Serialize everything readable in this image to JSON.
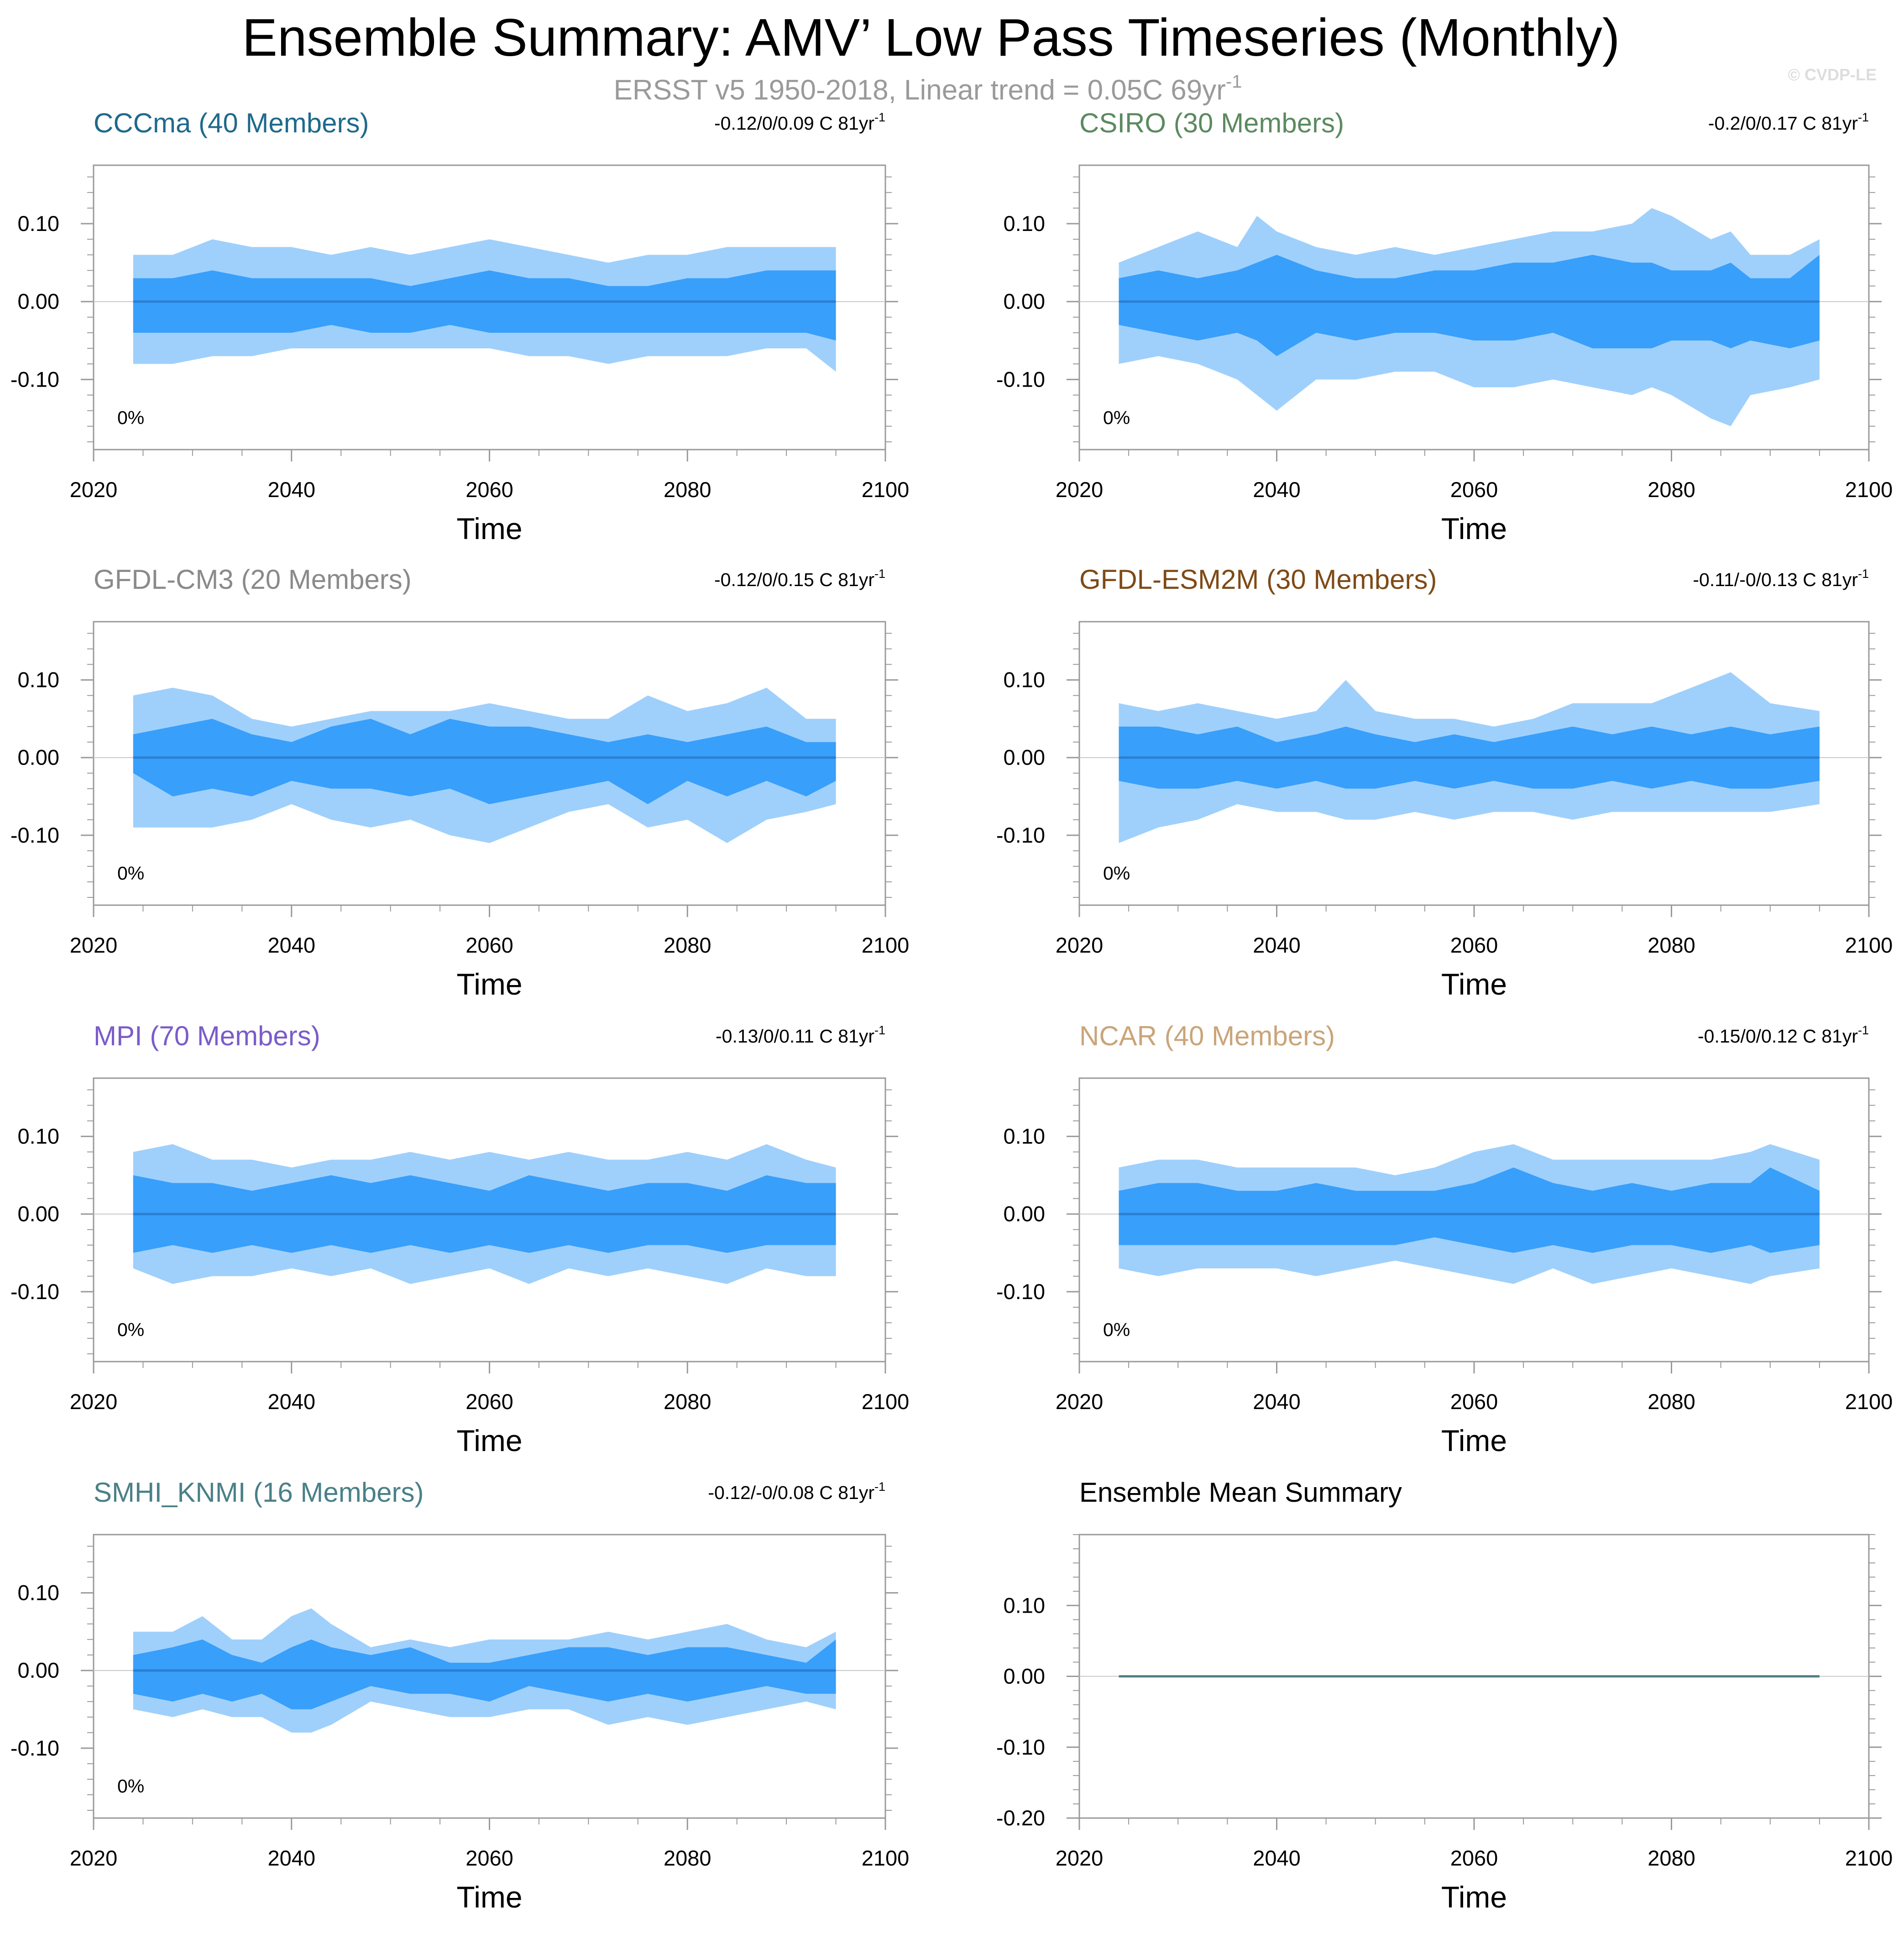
{
  "header": {
    "title": "Ensemble Summary: AMV’ Low Pass Timeseries (Monthly)",
    "subtitle": "ERSST v5 1950-2018, Linear trend = 0.05C 69yr",
    "subtitle_sup": "-1",
    "copyright": "© CVDP-LE"
  },
  "colors": {
    "outer_band": "#9fd0fc",
    "inner_band": "#389ffb",
    "mean_line": "#2a7fd0",
    "summary_line": "#4f7f86",
    "axis": "#9a9a9a",
    "zero_line": "#c8c8c8"
  },
  "chart_data": [
    {
      "type": "area",
      "id": "cccma",
      "title": "CCCma (40 Members)",
      "title_color": "#1e6a8c",
      "stat": "-0.12/0/0.09 C 81yr",
      "stat_sup": "-1",
      "pct_label": "0%",
      "xlabel": "Time",
      "xlim": [
        2020,
        2100
      ],
      "ylim": [
        -0.19,
        0.175
      ],
      "xticks": [
        2020,
        2040,
        2060,
        2080,
        2100
      ],
      "yticks": [
        0.1,
        0.0,
        -0.1
      ],
      "ytick_labels": [
        "0.10",
        "0.00",
        "-0.10"
      ],
      "x": [
        2024,
        2028,
        2032,
        2036,
        2040,
        2044,
        2048,
        2052,
        2056,
        2060,
        2064,
        2068,
        2072,
        2076,
        2080,
        2084,
        2088,
        2092,
        2095
      ],
      "upper_outer": [
        0.06,
        0.06,
        0.08,
        0.07,
        0.07,
        0.06,
        0.07,
        0.06,
        0.07,
        0.08,
        0.07,
        0.06,
        0.05,
        0.06,
        0.06,
        0.07,
        0.07,
        0.07,
        0.07
      ],
      "upper_inner": [
        0.03,
        0.03,
        0.04,
        0.03,
        0.03,
        0.03,
        0.03,
        0.02,
        0.03,
        0.04,
        0.03,
        0.03,
        0.02,
        0.02,
        0.03,
        0.03,
        0.04,
        0.04,
        0.04
      ],
      "lower_inner": [
        -0.04,
        -0.04,
        -0.04,
        -0.04,
        -0.04,
        -0.03,
        -0.04,
        -0.04,
        -0.03,
        -0.04,
        -0.04,
        -0.04,
        -0.04,
        -0.04,
        -0.04,
        -0.04,
        -0.04,
        -0.04,
        -0.05
      ],
      "lower_outer": [
        -0.08,
        -0.08,
        -0.07,
        -0.07,
        -0.06,
        -0.06,
        -0.06,
        -0.06,
        -0.06,
        -0.06,
        -0.07,
        -0.07,
        -0.08,
        -0.07,
        -0.07,
        -0.07,
        -0.06,
        -0.06,
        -0.09
      ],
      "mean": [
        0,
        0,
        0,
        0,
        0,
        0,
        0,
        0,
        0,
        0,
        0,
        0,
        0,
        0,
        0,
        0,
        0,
        0,
        0
      ]
    },
    {
      "type": "area",
      "id": "csiro",
      "title": "CSIRO (30 Members)",
      "title_color": "#5b8a5f",
      "stat": "-0.2/0/0.17 C 81yr",
      "stat_sup": "-1",
      "pct_label": "0%",
      "xlabel": "Time",
      "xlim": [
        2020,
        2100
      ],
      "ylim": [
        -0.19,
        0.175
      ],
      "xticks": [
        2020,
        2040,
        2060,
        2080,
        2100
      ],
      "yticks": [
        0.1,
        0.0,
        -0.1
      ],
      "ytick_labels": [
        "0.10",
        "0.00",
        "-0.10"
      ],
      "x": [
        2024,
        2028,
        2032,
        2036,
        2038,
        2040,
        2044,
        2048,
        2052,
        2056,
        2060,
        2064,
        2068,
        2072,
        2076,
        2078,
        2080,
        2084,
        2086,
        2088,
        2092,
        2095
      ],
      "upper_outer": [
        0.05,
        0.07,
        0.09,
        0.07,
        0.11,
        0.09,
        0.07,
        0.06,
        0.07,
        0.06,
        0.07,
        0.08,
        0.09,
        0.09,
        0.1,
        0.12,
        0.11,
        0.08,
        0.09,
        0.06,
        0.06,
        0.08
      ],
      "upper_inner": [
        0.03,
        0.04,
        0.03,
        0.04,
        0.05,
        0.06,
        0.04,
        0.03,
        0.03,
        0.04,
        0.04,
        0.05,
        0.05,
        0.06,
        0.05,
        0.05,
        0.04,
        0.04,
        0.05,
        0.03,
        0.03,
        0.06
      ],
      "lower_inner": [
        -0.03,
        -0.04,
        -0.05,
        -0.04,
        -0.05,
        -0.07,
        -0.04,
        -0.05,
        -0.04,
        -0.04,
        -0.05,
        -0.05,
        -0.04,
        -0.06,
        -0.06,
        -0.06,
        -0.05,
        -0.05,
        -0.06,
        -0.05,
        -0.06,
        -0.05
      ],
      "lower_outer": [
        -0.08,
        -0.07,
        -0.08,
        -0.1,
        -0.12,
        -0.14,
        -0.1,
        -0.1,
        -0.09,
        -0.09,
        -0.11,
        -0.11,
        -0.1,
        -0.11,
        -0.12,
        -0.11,
        -0.12,
        -0.15,
        -0.16,
        -0.12,
        -0.11,
        -0.1
      ],
      "mean": [
        0,
        0,
        0,
        0,
        0,
        0,
        0,
        0,
        0,
        0,
        0,
        0,
        0,
        0,
        0,
        0,
        0,
        0,
        0,
        0,
        0,
        0
      ]
    },
    {
      "type": "area",
      "id": "gfdl-cm3",
      "title": "GFDL-CM3 (20 Members)",
      "title_color": "#8a8a8a",
      "stat": "-0.12/0/0.15 C 81yr",
      "stat_sup": "-1",
      "pct_label": "0%",
      "xlabel": "Time",
      "xlim": [
        2020,
        2100
      ],
      "ylim": [
        -0.19,
        0.175
      ],
      "xticks": [
        2020,
        2040,
        2060,
        2080,
        2100
      ],
      "yticks": [
        0.1,
        0.0,
        -0.1
      ],
      "ytick_labels": [
        "0.10",
        "0.00",
        "-0.10"
      ],
      "x": [
        2024,
        2028,
        2032,
        2036,
        2040,
        2044,
        2048,
        2052,
        2056,
        2060,
        2064,
        2068,
        2072,
        2076,
        2080,
        2084,
        2088,
        2092,
        2095
      ],
      "upper_outer": [
        0.08,
        0.09,
        0.08,
        0.05,
        0.04,
        0.05,
        0.06,
        0.06,
        0.06,
        0.07,
        0.06,
        0.05,
        0.05,
        0.08,
        0.06,
        0.07,
        0.09,
        0.05,
        0.05
      ],
      "upper_inner": [
        0.03,
        0.04,
        0.05,
        0.03,
        0.02,
        0.04,
        0.05,
        0.03,
        0.05,
        0.04,
        0.04,
        0.03,
        0.02,
        0.03,
        0.02,
        0.03,
        0.04,
        0.02,
        0.02
      ],
      "lower_inner": [
        -0.02,
        -0.05,
        -0.04,
        -0.05,
        -0.03,
        -0.04,
        -0.04,
        -0.05,
        -0.04,
        -0.06,
        -0.05,
        -0.04,
        -0.03,
        -0.06,
        -0.03,
        -0.05,
        -0.03,
        -0.05,
        -0.03
      ],
      "lower_outer": [
        -0.09,
        -0.09,
        -0.09,
        -0.08,
        -0.06,
        -0.08,
        -0.09,
        -0.08,
        -0.1,
        -0.11,
        -0.09,
        -0.07,
        -0.06,
        -0.09,
        -0.08,
        -0.11,
        -0.08,
        -0.07,
        -0.06
      ],
      "mean": [
        0,
        0,
        0,
        0,
        0,
        0,
        0,
        0,
        0,
        0,
        0,
        0,
        0,
        0,
        0,
        0,
        0,
        0,
        0
      ]
    },
    {
      "type": "area",
      "id": "gfdl-esm2m",
      "title": "GFDL-ESM2M (30 Members)",
      "title_color": "#7f4a16",
      "stat": "-0.11/-0/0.13 C 81yr",
      "stat_sup": "-1",
      "pct_label": "0%",
      "xlabel": "Time",
      "xlim": [
        2020,
        2100
      ],
      "ylim": [
        -0.19,
        0.175
      ],
      "xticks": [
        2020,
        2040,
        2060,
        2080,
        2100
      ],
      "yticks": [
        0.1,
        0.0,
        -0.1
      ],
      "ytick_labels": [
        "0.10",
        "0.00",
        "-0.10"
      ],
      "x": [
        2024,
        2028,
        2032,
        2036,
        2040,
        2044,
        2047,
        2050,
        2054,
        2058,
        2062,
        2066,
        2070,
        2074,
        2078,
        2082,
        2086,
        2090,
        2095
      ],
      "upper_outer": [
        0.07,
        0.06,
        0.07,
        0.06,
        0.05,
        0.06,
        0.1,
        0.06,
        0.05,
        0.05,
        0.04,
        0.05,
        0.07,
        0.07,
        0.07,
        0.09,
        0.11,
        0.07,
        0.06
      ],
      "upper_inner": [
        0.04,
        0.04,
        0.03,
        0.04,
        0.02,
        0.03,
        0.04,
        0.03,
        0.02,
        0.03,
        0.02,
        0.03,
        0.04,
        0.03,
        0.04,
        0.03,
        0.04,
        0.03,
        0.04
      ],
      "lower_inner": [
        -0.03,
        -0.04,
        -0.04,
        -0.03,
        -0.04,
        -0.03,
        -0.04,
        -0.04,
        -0.03,
        -0.04,
        -0.03,
        -0.04,
        -0.04,
        -0.03,
        -0.04,
        -0.03,
        -0.04,
        -0.04,
        -0.03
      ],
      "lower_outer": [
        -0.11,
        -0.09,
        -0.08,
        -0.06,
        -0.07,
        -0.07,
        -0.08,
        -0.08,
        -0.07,
        -0.08,
        -0.07,
        -0.07,
        -0.08,
        -0.07,
        -0.07,
        -0.07,
        -0.07,
        -0.07,
        -0.06
      ],
      "mean": [
        0,
        0,
        0,
        0,
        0,
        0,
        0,
        0,
        0,
        0,
        0,
        0,
        0,
        0,
        0,
        0,
        0,
        0,
        0
      ]
    },
    {
      "type": "area",
      "id": "mpi",
      "title": "MPI (70 Members)",
      "title_color": "#7b5bc9",
      "stat": "-0.13/0/0.11 C 81yr",
      "stat_sup": "-1",
      "pct_label": "0%",
      "xlabel": "Time",
      "xlim": [
        2020,
        2100
      ],
      "ylim": [
        -0.19,
        0.175
      ],
      "xticks": [
        2020,
        2040,
        2060,
        2080,
        2100
      ],
      "yticks": [
        0.1,
        0.0,
        -0.1
      ],
      "ytick_labels": [
        "0.10",
        "0.00",
        "-0.10"
      ],
      "x": [
        2024,
        2028,
        2032,
        2036,
        2040,
        2044,
        2048,
        2052,
        2056,
        2060,
        2064,
        2068,
        2072,
        2076,
        2080,
        2084,
        2088,
        2092,
        2095
      ],
      "upper_outer": [
        0.08,
        0.09,
        0.07,
        0.07,
        0.06,
        0.07,
        0.07,
        0.08,
        0.07,
        0.08,
        0.07,
        0.08,
        0.07,
        0.07,
        0.08,
        0.07,
        0.09,
        0.07,
        0.06
      ],
      "upper_inner": [
        0.05,
        0.04,
        0.04,
        0.03,
        0.04,
        0.05,
        0.04,
        0.05,
        0.04,
        0.03,
        0.05,
        0.04,
        0.03,
        0.04,
        0.04,
        0.03,
        0.05,
        0.04,
        0.04
      ],
      "lower_inner": [
        -0.05,
        -0.04,
        -0.05,
        -0.04,
        -0.05,
        -0.04,
        -0.05,
        -0.04,
        -0.05,
        -0.04,
        -0.05,
        -0.04,
        -0.05,
        -0.04,
        -0.04,
        -0.05,
        -0.04,
        -0.04,
        -0.04
      ],
      "lower_outer": [
        -0.07,
        -0.09,
        -0.08,
        -0.08,
        -0.07,
        -0.08,
        -0.07,
        -0.09,
        -0.08,
        -0.07,
        -0.09,
        -0.07,
        -0.08,
        -0.07,
        -0.08,
        -0.09,
        -0.07,
        -0.08,
        -0.08
      ],
      "mean": [
        0,
        0,
        0,
        0,
        0,
        0,
        0,
        0,
        0,
        0,
        0,
        0,
        0,
        0,
        0,
        0,
        0,
        0,
        0
      ]
    },
    {
      "type": "area",
      "id": "ncar",
      "title": "NCAR (40 Members)",
      "title_color": "#c9a57a",
      "stat": "-0.15/0/0.12 C 81yr",
      "stat_sup": "-1",
      "pct_label": "0%",
      "xlabel": "Time",
      "xlim": [
        2020,
        2100
      ],
      "ylim": [
        -0.19,
        0.175
      ],
      "xticks": [
        2020,
        2040,
        2060,
        2080,
        2100
      ],
      "yticks": [
        0.1,
        0.0,
        -0.1
      ],
      "ytick_labels": [
        "0.10",
        "0.00",
        "-0.10"
      ],
      "x": [
        2024,
        2028,
        2032,
        2036,
        2040,
        2044,
        2048,
        2052,
        2056,
        2060,
        2064,
        2068,
        2072,
        2076,
        2080,
        2084,
        2088,
        2090,
        2095
      ],
      "upper_outer": [
        0.06,
        0.07,
        0.07,
        0.06,
        0.06,
        0.06,
        0.06,
        0.05,
        0.06,
        0.08,
        0.09,
        0.07,
        0.07,
        0.07,
        0.07,
        0.07,
        0.08,
        0.09,
        0.07
      ],
      "upper_inner": [
        0.03,
        0.04,
        0.04,
        0.03,
        0.03,
        0.04,
        0.03,
        0.03,
        0.03,
        0.04,
        0.06,
        0.04,
        0.03,
        0.04,
        0.03,
        0.04,
        0.04,
        0.06,
        0.03
      ],
      "lower_inner": [
        -0.04,
        -0.04,
        -0.04,
        -0.04,
        -0.04,
        -0.04,
        -0.04,
        -0.04,
        -0.03,
        -0.04,
        -0.05,
        -0.04,
        -0.05,
        -0.04,
        -0.04,
        -0.05,
        -0.04,
        -0.05,
        -0.04
      ],
      "lower_outer": [
        -0.07,
        -0.08,
        -0.07,
        -0.07,
        -0.07,
        -0.08,
        -0.07,
        -0.06,
        -0.07,
        -0.08,
        -0.09,
        -0.07,
        -0.09,
        -0.08,
        -0.07,
        -0.08,
        -0.09,
        -0.08,
        -0.07
      ],
      "mean": [
        0,
        0,
        0,
        0,
        0,
        0,
        0,
        0,
        0,
        0,
        0,
        0,
        0,
        0,
        0,
        0,
        0,
        0,
        0
      ]
    },
    {
      "type": "area",
      "id": "smhi-knmi",
      "title": "SMHI_KNMI (16 Members)",
      "title_color": "#4a8088",
      "stat": "-0.12/-0/0.08 C 81yr",
      "stat_sup": "-1",
      "pct_label": "0%",
      "xlabel": "Time",
      "xlim": [
        2020,
        2100
      ],
      "ylim": [
        -0.19,
        0.175
      ],
      "xticks": [
        2020,
        2040,
        2060,
        2080,
        2100
      ],
      "yticks": [
        0.1,
        0.0,
        -0.1
      ],
      "ytick_labels": [
        "0.10",
        "0.00",
        "-0.10"
      ],
      "x": [
        2024,
        2028,
        2031,
        2034,
        2037,
        2040,
        2042,
        2044,
        2048,
        2052,
        2056,
        2060,
        2064,
        2068,
        2072,
        2076,
        2080,
        2084,
        2088,
        2092,
        2095
      ],
      "upper_outer": [
        0.05,
        0.05,
        0.07,
        0.04,
        0.04,
        0.07,
        0.08,
        0.06,
        0.03,
        0.04,
        0.03,
        0.04,
        0.04,
        0.04,
        0.05,
        0.04,
        0.05,
        0.06,
        0.04,
        0.03,
        0.05
      ],
      "upper_inner": [
        0.02,
        0.03,
        0.04,
        0.02,
        0.01,
        0.03,
        0.04,
        0.03,
        0.02,
        0.03,
        0.01,
        0.01,
        0.02,
        0.03,
        0.03,
        0.02,
        0.03,
        0.03,
        0.02,
        0.01,
        0.04
      ],
      "lower_inner": [
        -0.03,
        -0.04,
        -0.03,
        -0.04,
        -0.03,
        -0.05,
        -0.05,
        -0.04,
        -0.02,
        -0.03,
        -0.03,
        -0.04,
        -0.02,
        -0.03,
        -0.04,
        -0.03,
        -0.04,
        -0.03,
        -0.02,
        -0.03,
        -0.03
      ],
      "lower_outer": [
        -0.05,
        -0.06,
        -0.05,
        -0.06,
        -0.06,
        -0.08,
        -0.08,
        -0.07,
        -0.04,
        -0.05,
        -0.06,
        -0.06,
        -0.05,
        -0.05,
        -0.07,
        -0.06,
        -0.07,
        -0.06,
        -0.05,
        -0.04,
        -0.05
      ],
      "mean": [
        0,
        0,
        0,
        0,
        0,
        0,
        0,
        0,
        0,
        0,
        0,
        0,
        0,
        0,
        0,
        0,
        0,
        0,
        0,
        0,
        0
      ]
    },
    {
      "type": "line",
      "id": "ensemble-mean",
      "title": "Ensemble Mean Summary",
      "title_color": "#000000",
      "xlabel": "Time",
      "xlim": [
        2020,
        2100
      ],
      "ylim": [
        -0.2,
        0.2
      ],
      "xticks": [
        2020,
        2040,
        2060,
        2080,
        2100
      ],
      "yticks": [
        0.1,
        0.0,
        -0.1,
        -0.2
      ],
      "ytick_labels": [
        "0.10",
        "0.00",
        "-0.10",
        "-0.20"
      ],
      "x": [
        2024,
        2095
      ],
      "mean": [
        0,
        0
      ]
    }
  ]
}
